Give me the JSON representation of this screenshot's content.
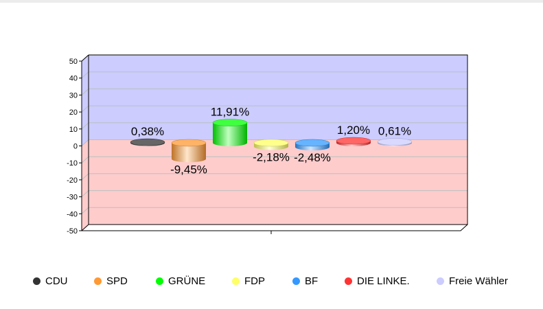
{
  "chart_data": {
    "type": "bar",
    "style": "3d-cylinder",
    "categories": [
      "CDU",
      "SPD",
      "GRÜNE",
      "FDP",
      "BF",
      "DIE LINKE.",
      "Freie Wähler"
    ],
    "values": [
      0.38,
      -9.45,
      11.91,
      -2.18,
      -2.48,
      1.2,
      0.61
    ],
    "data_labels": [
      "0,38%",
      "-9,45%",
      "11,91%",
      "-2,18%",
      "-2,48%",
      "1,20%",
      "0,61%"
    ],
    "colors": [
      "#333333",
      "#ff9933",
      "#00ff00",
      "#ffff66",
      "#3399ff",
      "#ff3333",
      "#ccccff"
    ],
    "ylim": [
      -50,
      50
    ],
    "yticks": [
      "50",
      "40",
      "30",
      "20",
      "10",
      "0",
      "-10",
      "-20",
      "-30",
      "-40",
      "-50"
    ],
    "ytick_values": [
      50,
      40,
      30,
      20,
      10,
      0,
      -10,
      -20,
      -30,
      -40,
      -50
    ],
    "positive_bg": "#ccccff",
    "negative_bg": "#ffcccc",
    "grid": true,
    "legend_position": "bottom",
    "title": "",
    "xlabel": "",
    "ylabel": ""
  }
}
